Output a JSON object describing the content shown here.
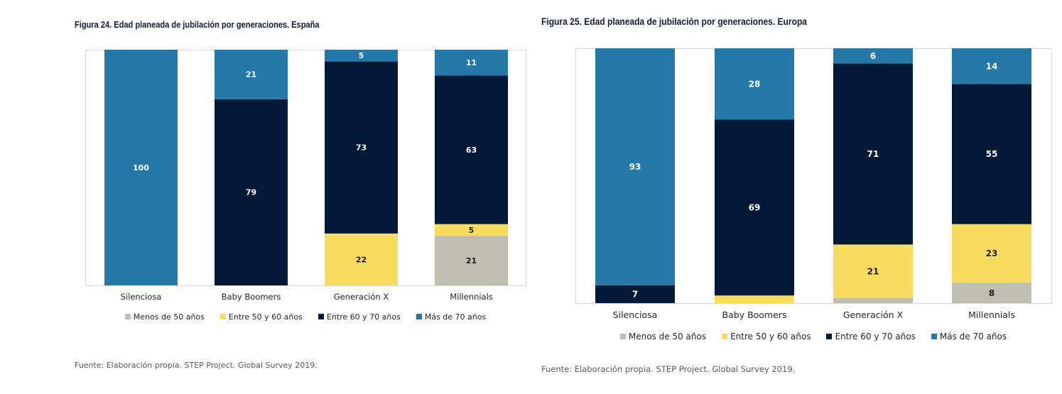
{
  "chart_data": [
    {
      "type": "bar",
      "stacked": true,
      "title": "Figura 24. Edad planeada de jubilación por generaciones. España",
      "categories": [
        "Silenciosa",
        "Baby Boomers",
        "Generación X",
        "Millennials"
      ],
      "series": [
        {
          "name": "Menos de 50 años",
          "color": "#c0bdb1",
          "values": [
            0,
            0,
            0,
            21
          ]
        },
        {
          "name": "Entre 50 y 60 años",
          "color": "#f8dc5e",
          "values": [
            0,
            0,
            22,
            5
          ]
        },
        {
          "name": "Entre 60 y 70 años",
          "color": "#021938",
          "values": [
            0,
            79,
            73,
            63
          ]
        },
        {
          "name": "Más de 70 años",
          "color": "#2479a9",
          "values": [
            100,
            21,
            5,
            11
          ]
        }
      ],
      "ylim": [
        0,
        100
      ],
      "grid": false,
      "legend": "bottom",
      "source": "Fuente: Elaboración propia. STEP Project. Global Survey 2019."
    },
    {
      "type": "bar",
      "stacked": true,
      "title": "Figura 25. Edad planeada de jubilación por generaciones. Europa",
      "categories": [
        "Silenciosa",
        "Baby Boomers",
        "Generación X",
        "Millennials"
      ],
      "series": [
        {
          "name": "Menos de 50 años",
          "color": "#c0bdb1",
          "values": [
            0,
            0,
            2,
            8
          ]
        },
        {
          "name": "Entre 50 y 60 años",
          "color": "#f8dc5e",
          "values": [
            0,
            3,
            21,
            23
          ]
        },
        {
          "name": "Entre 60 y 70 años",
          "color": "#021938",
          "values": [
            7,
            69,
            71,
            55
          ]
        },
        {
          "name": "Más de 70 años",
          "color": "#2479a9",
          "values": [
            93,
            28,
            6,
            14
          ]
        }
      ],
      "ylim": [
        0,
        100
      ],
      "grid": false,
      "legend": "bottom",
      "source": "Fuente: Elaboración propia. STEP Project. Global Survey 2019."
    }
  ]
}
